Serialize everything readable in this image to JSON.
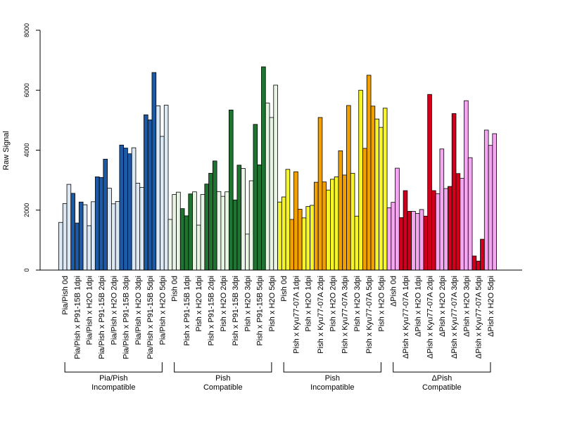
{
  "chart_data": {
    "type": "bar",
    "ylabel": "Raw Signal",
    "ylim": [
      0,
      8000
    ],
    "yticks": [
      0,
      2000,
      4000,
      6000,
      8000
    ],
    "grid": false,
    "legend": "none",
    "categories": [
      "Pia/Pish 0d",
      "Pia/Pish x P91-15B 1dpi",
      "Pia/Pish x H2O 1dpi",
      "Pia/Pish x P91-15B 2dpi",
      "Pia/Pish x H2O 2dpi",
      "Pia/Pish x P91-15B 3dpi",
      "Pia/Pish x H2O 3dpi",
      "Pia/Pish x P91-15B 5dpi",
      "Pia/Pish x H2O 5dpi",
      "Pish 0d",
      "Pish x P91-15B 1dpi",
      "Pish x H2O 1dpi",
      "Pish x P91-15B 2dpi",
      "Pish x H2O 2dpi",
      "Pish x P91-15B 3dpi",
      "Pish x H2O 3dpi",
      "Pish x P91-15B 5dpi",
      "Pish x H2O 5dpi",
      "Pish 0d",
      "Pish x Kyu77-07A 1dpi",
      "Pish x H2O 1dpi",
      "Pish x Kyu77-07A 2dpi",
      "Pish x H2O 2dpi",
      "Pish x Kyu77-07A 3dpi",
      "Pish x H2O 3dpi",
      "Pish x Kyu77-07A 5dpi",
      "Pish x H2O 5dpi",
      "ΔPish 0d",
      "ΔPish x Kyu77-07A 1dpi",
      "ΔPish x H2O 1dpi",
      "ΔPish x Kyu77-07A 2dpi",
      "ΔPish x H2O 2dpi",
      "ΔPish x Kyu77-07A 3dpi",
      "ΔPish x H2O 3dpi",
      "ΔPish x Kyu77-07A 5dpi",
      "ΔPish x H2O 5dpi"
    ],
    "values": [
      [
        1590,
        2220,
        2860
      ],
      [
        2560,
        1570,
        2270
      ],
      [
        2180,
        1480,
        2280
      ],
      [
        3110,
        3090,
        3700
      ],
      [
        2730,
        2210,
        2290
      ],
      [
        4170,
        4070,
        3880
      ],
      [
        4080,
        2900,
        2760
      ],
      [
        5180,
        5010,
        6590
      ],
      [
        5480,
        4460,
        5500
      ],
      [
        1690,
        2520,
        2600
      ],
      [
        2050,
        1810,
        2540
      ],
      [
        2610,
        1500,
        2520
      ],
      [
        2870,
        3230,
        3640
      ],
      [
        2620,
        2460,
        2610
      ],
      [
        5340,
        2340,
        3500
      ],
      [
        3390,
        1200,
        2980
      ],
      [
        4860,
        3510,
        6780
      ],
      [
        5570,
        5090,
        6170
      ],
      [
        2270,
        2440,
        3360
      ],
      [
        1690,
        3280,
        2030
      ],
      [
        1740,
        2120,
        2160
      ],
      [
        2930,
        5090,
        2940
      ],
      [
        2670,
        3030,
        3110
      ],
      [
        3980,
        3170,
        5490
      ],
      [
        3230,
        1800,
        6000
      ],
      [
        4060,
        6500,
        5470
      ],
      [
        5040,
        4760,
        5400
      ],
      [
        2080,
        2260,
        3400
      ],
      [
        1750,
        2650,
        1960
      ],
      [
        1960,
        1890,
        2020
      ],
      [
        1800,
        5860,
        2650
      ],
      [
        2550,
        4040,
        2720
      ],
      [
        2790,
        5220,
        3220
      ],
      [
        3060,
        5650,
        3750
      ],
      [
        470,
        300,
        1030
      ],
      [
        4670,
        4160,
        4550
      ]
    ],
    "bar_colors": [
      "#dce8f3",
      "#1c5aa5",
      "#dce8f3",
      "#1c5aa5",
      "#dce8f3",
      "#1c5aa5",
      "#dce8f3",
      "#1c5aa5",
      "#dce8f3",
      "#e8f5e4",
      "#1e7430",
      "#e8f5e4",
      "#1e7430",
      "#e8f5e4",
      "#1e7430",
      "#e8f5e4",
      "#1e7430",
      "#e8f5e4",
      "#f5f52a",
      "#f0a000",
      "#f5f52a",
      "#f0a000",
      "#f5f52a",
      "#f0a000",
      "#f5f52a",
      "#f0a000",
      "#f5f52a",
      "#f5a6f0",
      "#d0001c",
      "#f5a6f0",
      "#d0001c",
      "#f5a6f0",
      "#d0001c",
      "#f5a6f0",
      "#d0001c",
      "#f5a6f0"
    ],
    "groups": [
      {
        "line1": "Pia/Pish",
        "line2": "Incompatible",
        "start": 0,
        "end": 8
      },
      {
        "line1": "Pish",
        "line2": "Compatible",
        "start": 9,
        "end": 17
      },
      {
        "line1": "Pish",
        "line2": "Incompatible",
        "start": 18,
        "end": 26
      },
      {
        "line1": "ΔPish",
        "line2": "Compatible",
        "start": 27,
        "end": 35
      }
    ]
  }
}
